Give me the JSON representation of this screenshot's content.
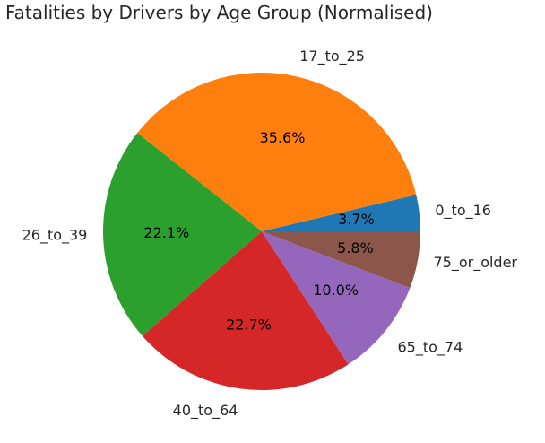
{
  "chart_data": {
    "type": "pie",
    "title": "Fatalities by Drivers by Age Group (Normalised)",
    "start_angle_deg": 0,
    "direction": "counterclockwise",
    "slices": [
      {
        "label": "0_to_16",
        "value": 3.7,
        "pct_label": "3.7%",
        "color": "#1f77b4"
      },
      {
        "label": "17_to_25",
        "value": 35.6,
        "pct_label": "35.6%",
        "color": "#ff7f0e"
      },
      {
        "label": "26_to_39",
        "value": 22.1,
        "pct_label": "22.1%",
        "color": "#2ca02c"
      },
      {
        "label": "40_to_64",
        "value": 22.7,
        "pct_label": "22.7%",
        "color": "#d62728"
      },
      {
        "label": "65_to_74",
        "value": 10.0,
        "pct_label": "10.0%",
        "color": "#9467bd"
      },
      {
        "label": "75_or_older",
        "value": 5.8,
        "pct_label": "5.8%",
        "color": "#8c564b"
      }
    ]
  }
}
